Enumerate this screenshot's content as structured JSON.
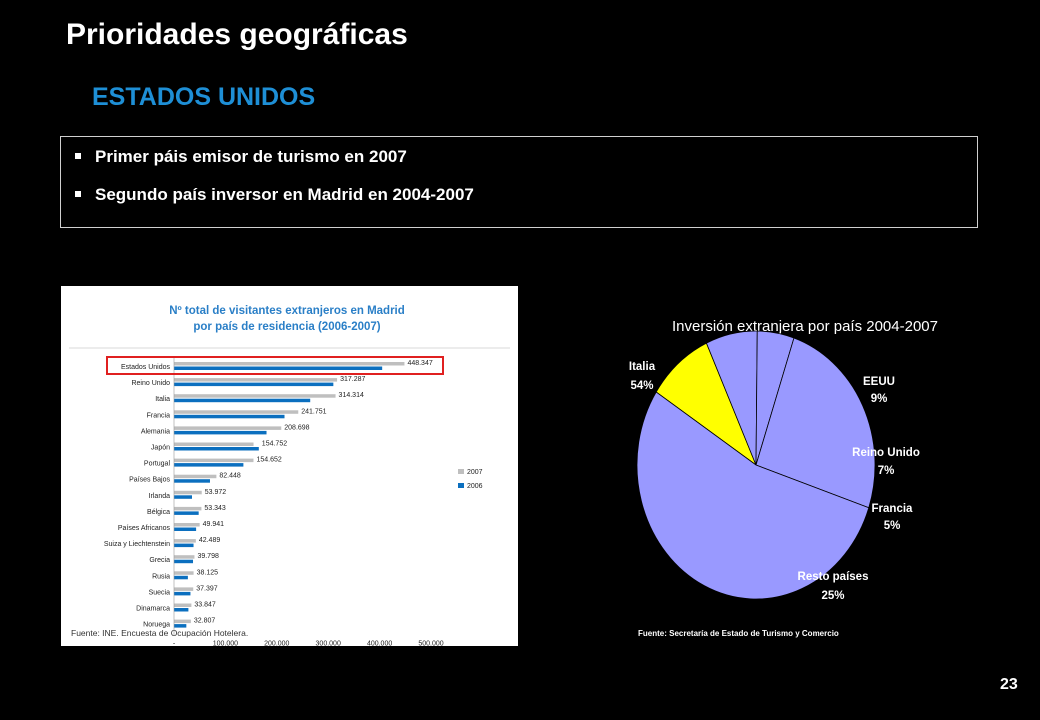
{
  "slide": {
    "title": "Prioridades geográficas",
    "subtitle": "ESTADOS UNIDOS",
    "bullets": [
      "Primer páis emisor de turismo en 2007",
      "Segundo país inversor en Madrid en 2004-2007"
    ],
    "page_number": "23"
  },
  "colors": {
    "subtitle": "#1e8fd6",
    "bar_2007": "#bfbfbf",
    "bar_2006": "#0b6fbf",
    "highlight": "#e02020",
    "pie_blue": "#9999ff",
    "pie_yellow": "#ffff00",
    "bar_title": "#2a7fc7"
  },
  "chart_data": [
    {
      "type": "bar",
      "orientation": "horizontal",
      "title": "Nº total de visitantes extranjeros en Madrid por país de residencia (2006-2007)",
      "title_lines": [
        "Nº total de visitantes extranjeros en Madrid",
        "por país de residencia (2006-2007)"
      ],
      "categories": [
        "Estados Unidos",
        "Reino Unido",
        "Italia",
        "Francia",
        "Alemania",
        "Japón",
        "Portugal",
        "Países Bajos",
        "Irlanda",
        "Bélgica",
        "Países Africanos",
        "Suiza y Liechtenstein",
        "Grecia",
        "Rusia",
        "Suecia",
        "Dinamarca",
        "Noruega"
      ],
      "series": [
        {
          "name": "2007",
          "values": [
            448347,
            317287,
            314314,
            241751,
            208698,
            154752,
            154652,
            82448,
            53972,
            53343,
            49941,
            42489,
            39798,
            38125,
            37397,
            33847,
            32807
          ]
        },
        {
          "name": "2006",
          "values": [
            405000,
            310000,
            265000,
            215000,
            180000,
            165000,
            135000,
            70000,
            35000,
            48000,
            43000,
            38000,
            37000,
            27000,
            32000,
            28000,
            24000
          ]
        }
      ],
      "data_labels": [
        "448.347",
        "317.287",
        "314.314",
        "241.751",
        "208.698",
        "154.752",
        "154.652",
        "82.448",
        "53.972",
        "53.343",
        "49.941",
        "42.489",
        "39.798",
        "38.125",
        "37.397",
        "33.847",
        "32.807"
      ],
      "xlim": [
        0,
        500000
      ],
      "xticks": [
        "-",
        "100.000",
        "200.000",
        "300.000",
        "400.000",
        "500.000"
      ],
      "legend_placement": "right",
      "highlighted_category": "Estados Unidos",
      "source": "Fuente: INE. Encuesta de Ocupación Hotelera."
    },
    {
      "type": "pie",
      "title": "Inversión extranjera por país 2004-2007",
      "slices": [
        {
          "label": "Italia",
          "pct_label": "54%",
          "value": 54
        },
        {
          "label": "EEUU",
          "pct_label": "9%",
          "value": 9
        },
        {
          "label": "Reino Unido",
          "pct_label": "7%",
          "value": 7
        },
        {
          "label": "Francia",
          "pct_label": "5%",
          "value": 5
        },
        {
          "label": "Resto países",
          "pct_label": "25%",
          "value": 25
        }
      ],
      "source": "Fuente: Secretaría de Estado de Turismo y Comercio"
    }
  ]
}
